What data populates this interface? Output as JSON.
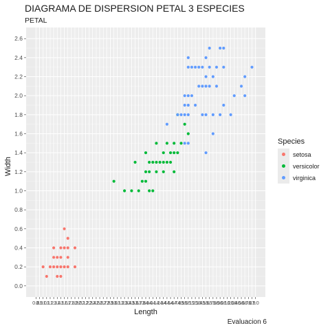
{
  "chart_data": {
    "type": "scatter",
    "title": "DIAGRAMA DE DISPERSION PETAL 3 ESPECIES",
    "subtitle": "PETAL",
    "caption": "Evaluacion 6",
    "xlabel": "Length",
    "ylabel": "Width",
    "xlim": [
      0.8,
      7.0
    ],
    "ylim": [
      0.0,
      2.6
    ],
    "grid": true,
    "legend_position": "right",
    "legend_title": "Species",
    "x_ticks": [
      "0.8",
      "0.9",
      "1.0",
      "1.1",
      "1.2",
      "1.3",
      "1.4",
      "1.5",
      "1.6",
      "1.7",
      "1.8",
      "1.9",
      "2.0",
      "2.1",
      "2.2",
      "2.3",
      "2.4",
      "2.5",
      "2.6",
      "2.7",
      "2.8",
      "2.9",
      "3.0",
      "3.1",
      "3.2",
      "3.3",
      "3.4",
      "3.5",
      "3.6",
      "3.7",
      "3.8",
      "3.9",
      "4.0",
      "4.1",
      "4.2",
      "4.3",
      "4.4",
      "4.5",
      "4.6",
      "4.7",
      "4.8",
      "4.9",
      "5.0",
      "5.1",
      "5.2",
      "5.3",
      "5.4",
      "5.5",
      "5.6",
      "5.7",
      "5.8",
      "5.9",
      "6.0",
      "6.1",
      "6.2",
      "6.3",
      "6.4",
      "6.5",
      "6.6",
      "6.7",
      "6.8",
      "6.9",
      "7.0"
    ],
    "y_ticks": [
      "0.0",
      "0.2",
      "0.4",
      "0.6",
      "0.8",
      "1.0",
      "1.2",
      "1.4",
      "1.6",
      "1.8",
      "2.0",
      "2.2",
      "2.4",
      "2.6"
    ],
    "series": [
      {
        "name": "setosa",
        "color": "#f8766d",
        "points": [
          [
            1.0,
            0.2
          ],
          [
            1.1,
            0.1
          ],
          [
            1.2,
            0.2
          ],
          [
            1.3,
            0.2
          ],
          [
            1.3,
            0.3
          ],
          [
            1.3,
            0.4
          ],
          [
            1.4,
            0.1
          ],
          [
            1.4,
            0.2
          ],
          [
            1.4,
            0.3
          ],
          [
            1.5,
            0.1
          ],
          [
            1.5,
            0.2
          ],
          [
            1.5,
            0.3
          ],
          [
            1.5,
            0.4
          ],
          [
            1.6,
            0.2
          ],
          [
            1.6,
            0.4
          ],
          [
            1.6,
            0.6
          ],
          [
            1.7,
            0.2
          ],
          [
            1.7,
            0.3
          ],
          [
            1.7,
            0.4
          ],
          [
            1.7,
            0.5
          ],
          [
            1.9,
            0.2
          ],
          [
            1.9,
            0.4
          ]
        ]
      },
      {
        "name": "versicolor",
        "color": "#00ba38",
        "points": [
          [
            3.0,
            1.1
          ],
          [
            3.3,
            1.0
          ],
          [
            3.5,
            1.0
          ],
          [
            3.6,
            1.3
          ],
          [
            3.7,
            1.0
          ],
          [
            3.8,
            1.1
          ],
          [
            3.9,
            1.1
          ],
          [
            3.9,
            1.2
          ],
          [
            3.9,
            1.4
          ],
          [
            4.0,
            1.0
          ],
          [
            4.0,
            1.2
          ],
          [
            4.0,
            1.3
          ],
          [
            4.1,
            1.0
          ],
          [
            4.1,
            1.3
          ],
          [
            4.2,
            1.2
          ],
          [
            4.2,
            1.3
          ],
          [
            4.2,
            1.5
          ],
          [
            4.3,
            1.3
          ],
          [
            4.4,
            1.2
          ],
          [
            4.4,
            1.3
          ],
          [
            4.4,
            1.4
          ],
          [
            4.5,
            1.3
          ],
          [
            4.5,
            1.5
          ],
          [
            4.6,
            1.3
          ],
          [
            4.6,
            1.4
          ],
          [
            4.7,
            1.2
          ],
          [
            4.7,
            1.4
          ],
          [
            4.7,
            1.5
          ],
          [
            4.8,
            1.4
          ],
          [
            4.8,
            1.8
          ],
          [
            4.9,
            1.5
          ],
          [
            5.0,
            1.7
          ],
          [
            5.1,
            1.6
          ]
        ]
      },
      {
        "name": "virginica",
        "color": "#619cff",
        "points": [
          [
            4.5,
            1.7
          ],
          [
            4.8,
            1.8
          ],
          [
            4.9,
            1.8
          ],
          [
            5.0,
            1.5
          ],
          [
            5.0,
            1.8
          ],
          [
            5.0,
            1.9
          ],
          [
            5.0,
            2.0
          ],
          [
            5.1,
            1.5
          ],
          [
            5.1,
            1.8
          ],
          [
            5.1,
            1.9
          ],
          [
            5.1,
            2.0
          ],
          [
            5.1,
            2.3
          ],
          [
            5.1,
            2.4
          ],
          [
            5.2,
            2.0
          ],
          [
            5.2,
            2.3
          ],
          [
            5.3,
            1.9
          ],
          [
            5.3,
            2.3
          ],
          [
            5.4,
            2.1
          ],
          [
            5.4,
            2.3
          ],
          [
            5.5,
            1.8
          ],
          [
            5.5,
            2.1
          ],
          [
            5.5,
            2.3
          ],
          [
            5.6,
            1.4
          ],
          [
            5.6,
            1.8
          ],
          [
            5.6,
            2.1
          ],
          [
            5.6,
            2.2
          ],
          [
            5.6,
            2.4
          ],
          [
            5.7,
            2.1
          ],
          [
            5.7,
            2.3
          ],
          [
            5.7,
            2.5
          ],
          [
            5.8,
            1.6
          ],
          [
            5.8,
            1.8
          ],
          [
            5.8,
            2.2
          ],
          [
            5.9,
            2.1
          ],
          [
            5.9,
            2.3
          ],
          [
            6.0,
            1.8
          ],
          [
            6.0,
            2.5
          ],
          [
            6.1,
            1.9
          ],
          [
            6.1,
            2.3
          ],
          [
            6.1,
            2.5
          ],
          [
            6.3,
            1.8
          ],
          [
            6.4,
            2.0
          ],
          [
            6.6,
            2.1
          ],
          [
            6.7,
            2.0
          ],
          [
            6.7,
            2.2
          ],
          [
            6.9,
            2.3
          ]
        ]
      }
    ]
  }
}
